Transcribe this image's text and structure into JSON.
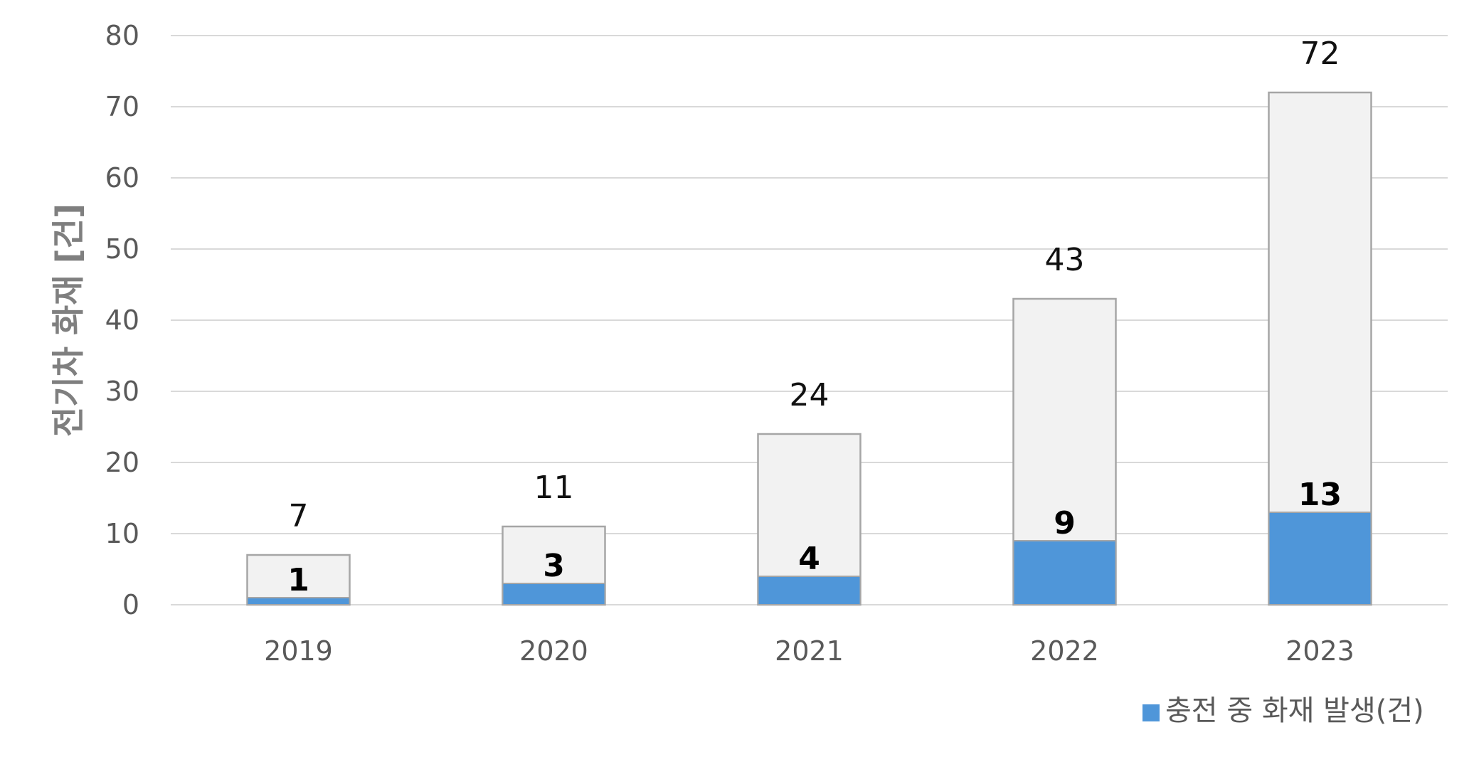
{
  "chart_data": {
    "type": "bar",
    "stacked": "overlap",
    "categories": [
      "2019",
      "2020",
      "2021",
      "2022",
      "2023"
    ],
    "series": [
      {
        "name": "",
        "role": "total",
        "values": [
          7,
          11,
          24,
          43,
          72
        ],
        "color": "#f2f2f2",
        "stroke": "#a6a6a6"
      },
      {
        "name": "충전 중 화재 발생(건)",
        "role": "charging",
        "values": [
          1,
          3,
          4,
          9,
          13
        ],
        "color": "#4f96d9",
        "stroke": "#a6a6a6"
      }
    ],
    "title": "",
    "xlabel": "",
    "ylabel": "전기차 화재 [건]",
    "ylim": [
      0,
      80
    ],
    "yticks": [
      0,
      10,
      20,
      30,
      40,
      50,
      60,
      70,
      80
    ],
    "grid": true,
    "legend": "bottom-right",
    "colors": {
      "grid": "#d9d9d9",
      "tick_text": "#595959",
      "ylabel": "#7f7f7f"
    }
  }
}
